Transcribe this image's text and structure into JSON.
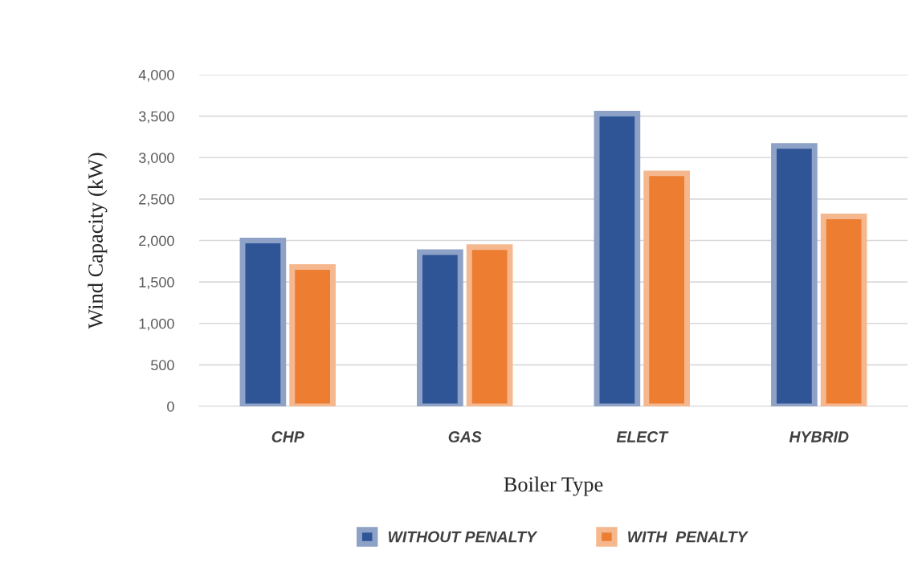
{
  "chart_data": {
    "type": "bar",
    "xlabel": "Boiler Type",
    "ylabel": "Wind Capacity (kW)",
    "categories": [
      "CHP",
      "GAS",
      "ELECT",
      "HYBRID"
    ],
    "series": [
      {
        "name": "WITHOUT PENALTY",
        "color": "#2f5597",
        "values": [
          2000,
          1860,
          3530,
          3140
        ]
      },
      {
        "name": "WITH  PENALTY",
        "color": "#ed7d31",
        "values": [
          1680,
          1920,
          2810,
          2290
        ]
      }
    ],
    "ylim": [
      0,
      4000
    ],
    "yticks": [
      {
        "value": 0,
        "label": "0"
      },
      {
        "value": 500,
        "label": "500"
      },
      {
        "value": 1000,
        "label": "1,000"
      },
      {
        "value": 1500,
        "label": "1,500"
      },
      {
        "value": 2000,
        "label": "2,000"
      },
      {
        "value": 2500,
        "label": "2,500"
      },
      {
        "value": 3000,
        "label": "3,000"
      },
      {
        "value": 3500,
        "label": "3,500"
      },
      {
        "value": 4000,
        "label": "4,000"
      }
    ],
    "grid": "y",
    "legend": "bottom"
  }
}
